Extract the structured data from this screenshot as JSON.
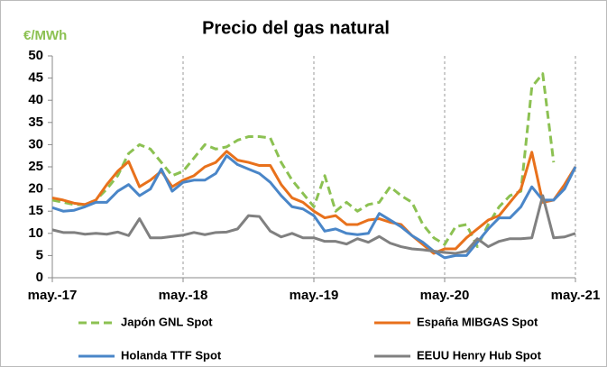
{
  "chart_data": {
    "type": "line",
    "title": "Precio del gas natural",
    "unit_label": "€/MWh",
    "categories": [
      "may.-17",
      null,
      null,
      null,
      null,
      null,
      null,
      null,
      null,
      null,
      null,
      null,
      "may.-18",
      null,
      null,
      null,
      null,
      null,
      null,
      null,
      null,
      null,
      null,
      null,
      "may.-19",
      null,
      null,
      null,
      null,
      null,
      null,
      null,
      null,
      null,
      null,
      null,
      "may.-20",
      null,
      null,
      null,
      null,
      null,
      null,
      null,
      null,
      null,
      null,
      null,
      "may.-21"
    ],
    "ylim": [
      0,
      50
    ],
    "yticks": [
      0,
      5,
      10,
      15,
      20,
      25,
      30,
      35,
      40,
      45,
      50
    ],
    "grid": true,
    "legend": "bottom",
    "series": [
      {
        "name": "Japón GNL Spot",
        "color": "#8cc152",
        "dashed": true,
        "values": [
          17.5,
          17,
          16.5,
          16.5,
          17.5,
          20,
          23,
          28,
          30,
          29,
          26,
          23,
          24,
          27,
          30,
          29,
          29.5,
          31,
          31.8,
          31.8,
          31.5,
          26,
          22,
          19,
          16,
          23,
          15,
          17,
          15,
          16.5,
          17,
          20.5,
          18.5,
          17,
          12,
          9,
          7.5,
          11.5,
          12,
          7,
          12,
          16,
          18.5,
          19.5,
          43,
          46,
          26,
          null,
          null
        ]
      },
      {
        "name": "España MIBGAS Spot",
        "color": "#e8711c",
        "values": [
          18,
          17.5,
          16.8,
          16.5,
          17.5,
          21,
          24,
          26.2,
          20.5,
          22,
          24,
          20.5,
          22,
          23,
          25,
          26,
          28.5,
          26.5,
          26,
          25.3,
          25.3,
          21,
          18,
          17,
          15,
          13.5,
          14,
          12,
          12,
          13,
          13.3,
          12.5,
          12,
          9.5,
          7.5,
          5.5,
          6.5,
          6.5,
          9,
          11,
          13,
          14,
          17,
          20,
          28.3,
          17,
          17.5,
          21,
          25
        ]
      },
      {
        "name": "Holanda TTF Spot",
        "color": "#4a86c8",
        "values": [
          15.8,
          15,
          15.2,
          16,
          17,
          17,
          19.5,
          21,
          18.5,
          20,
          24.5,
          19.5,
          21.5,
          22,
          22,
          23.5,
          27.5,
          25.5,
          24.5,
          23.5,
          21.5,
          18.5,
          16,
          15.5,
          14,
          10.5,
          11,
          10,
          9.7,
          10,
          14.5,
          13,
          11.5,
          9.5,
          8,
          6,
          4.5,
          5,
          5,
          8,
          11,
          13.5,
          13.5,
          16,
          20.5,
          17.5,
          17.5,
          20,
          25
        ]
      },
      {
        "name": "EEUU Henry Hub Spot",
        "color": "#808080",
        "values": [
          10.8,
          10.2,
          10.2,
          9.8,
          10,
          9.8,
          10.3,
          9.5,
          13.3,
          9,
          9,
          9.3,
          9.6,
          10.2,
          9.7,
          10.2,
          10.3,
          11,
          14,
          13.8,
          10.5,
          9.2,
          10,
          9,
          9,
          8.2,
          8.2,
          7.6,
          8.8,
          8,
          9.3,
          7.8,
          7,
          6.5,
          6.3,
          6,
          5.7,
          5.5,
          6,
          8.8,
          7,
          8.2,
          8.8,
          8.8,
          9,
          18.5,
          9,
          9.2,
          10
        ]
      }
    ]
  }
}
